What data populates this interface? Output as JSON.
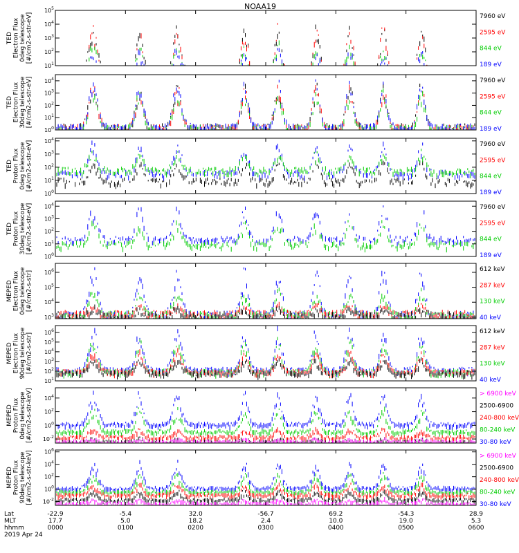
{
  "title": "NOAA19",
  "footer": {
    "rows": [
      {
        "label": "Lat",
        "values": [
          "-22.9",
          "-5.4",
          "32.0",
          "-56.7",
          "69.2",
          "-54.3",
          "28.9"
        ]
      },
      {
        "label": "MLT",
        "values": [
          "17.7",
          "5.0",
          "18.2",
          "2.4",
          "10.0",
          "19.0",
          "5.3"
        ]
      },
      {
        "label": "hhmm",
        "values": [
          "0000",
          "0100",
          "0200",
          "0300",
          "0400",
          "0500",
          "0600"
        ]
      }
    ],
    "date": "2019 Apr 24"
  },
  "chart_data": {
    "type": "scatter",
    "x_axis": {
      "label": "hhmm",
      "range": [
        "0000",
        "0600"
      ],
      "ticks": [
        "0000",
        "0100",
        "0200",
        "0300",
        "0400",
        "0500",
        "0600"
      ]
    },
    "panels": [
      {
        "ylabel": [
          "TED",
          "Electron Flux",
          "0deg telescope",
          "[#/cm2-s-str-eV]"
        ],
        "yticks": [
          {
            "v": 1,
            "label": "10^1"
          },
          {
            "v": 2,
            "label": "10^2"
          },
          {
            "v": 3,
            "label": "10^3"
          },
          {
            "v": 4,
            "label": "10^4"
          },
          {
            "v": 5,
            "label": "10^5"
          }
        ],
        "ymin": 1,
        "ymax": 5,
        "legend": [
          {
            "label": "7960 eV",
            "color": "#000000"
          },
          {
            "label": "2595 eV",
            "color": "#ff0000"
          },
          {
            "label": "844 eV",
            "color": "#00cc00"
          },
          {
            "label": "189 eV",
            "color": "#0000ff"
          }
        ],
        "series": [
          {
            "name": "7960 eV",
            "color": "#000000",
            "base": 0.35,
            "amp": 2.9
          },
          {
            "name": "2595 eV",
            "color": "#ff0000",
            "base": 0.25,
            "amp": 3.1
          },
          {
            "name": "844 eV",
            "color": "#00cc00",
            "base": 0.2,
            "amp": 2.0
          },
          {
            "name": "189 eV",
            "color": "#0000ff",
            "base": 0.1,
            "amp": 1.8
          }
        ]
      },
      {
        "ylabel": [
          "TED",
          "Electron Flux",
          "30deg telescope",
          "[#/cm2-s-str-eV]"
        ],
        "yticks": [
          {
            "v": 0,
            "label": "10^0"
          },
          {
            "v": 1,
            "label": "10^1"
          },
          {
            "v": 2,
            "label": "10^2"
          },
          {
            "v": 3,
            "label": "10^3"
          },
          {
            "v": 4,
            "label": "10^4"
          }
        ],
        "ymin": 0,
        "ymax": 4.5,
        "legend": [
          {
            "label": "7960 eV",
            "color": "#000000"
          },
          {
            "label": "2595 eV",
            "color": "#ff0000"
          },
          {
            "label": "844 eV",
            "color": "#00cc00"
          },
          {
            "label": "189 eV",
            "color": "#0000ff"
          }
        ],
        "series": [
          {
            "name": "7960 eV",
            "color": "#000000",
            "base": 0.3,
            "amp": 2.9
          },
          {
            "name": "2595 eV",
            "color": "#ff0000",
            "base": 0.25,
            "amp": 3.0
          },
          {
            "name": "844 eV",
            "color": "#00cc00",
            "base": 0.2,
            "amp": 2.6
          },
          {
            "name": "189 eV",
            "color": "#0000ff",
            "base": 0.3,
            "amp": 3.2
          }
        ]
      },
      {
        "ylabel": [
          "TED",
          "Proton Flux",
          "0deg telescope",
          "[#/cm2-s-str-eV]"
        ],
        "yticks": [
          {
            "v": 0,
            "label": "10^0"
          },
          {
            "v": 1,
            "label": "10^1"
          },
          {
            "v": 2,
            "label": "10^2"
          },
          {
            "v": 3,
            "label": "10^3"
          },
          {
            "v": 4,
            "label": "10^4"
          }
        ],
        "ymin": 0,
        "ymax": 4.2,
        "legend": [
          {
            "label": "7960 eV",
            "color": "#000000"
          },
          {
            "label": "2595 eV",
            "color": "#ff0000"
          },
          {
            "label": "844 eV",
            "color": "#00cc00"
          },
          {
            "label": "189 eV",
            "color": "#0000ff"
          }
        ],
        "series": [
          {
            "name": "7960 eV",
            "color": "#000000",
            "base": 1.0,
            "amp": 1.3
          },
          {
            "name": "189 eV",
            "color": "#0000ff",
            "base": 1.6,
            "amp": 2.0
          },
          {
            "name": "844 eV",
            "color": "#00cc00",
            "base": 1.8,
            "amp": 1.2
          }
        ]
      },
      {
        "ylabel": [
          "TED",
          "Proton Flux",
          "30deg telescope",
          "[#/cm2-s-str-eV]"
        ],
        "yticks": [
          {
            "v": 0,
            "label": "10^0"
          },
          {
            "v": 1,
            "label": "10^1"
          },
          {
            "v": 2,
            "label": "10^2"
          },
          {
            "v": 3,
            "label": "10^3"
          },
          {
            "v": 4,
            "label": "10^4"
          }
        ],
        "ymin": 0,
        "ymax": 4.4,
        "legend": [
          {
            "label": "7960 eV",
            "color": "#000000"
          },
          {
            "label": "2595 eV",
            "color": "#ff0000"
          },
          {
            "label": "844 eV",
            "color": "#00cc00"
          },
          {
            "label": "189 eV",
            "color": "#0000ff"
          }
        ],
        "series": [
          {
            "name": "189 eV",
            "color": "#0000ff",
            "base": 1.4,
            "amp": 2.3
          },
          {
            "name": "844 eV",
            "color": "#00cc00",
            "base": 1.0,
            "amp": 1.6
          }
        ]
      },
      {
        "ylabel": [
          "MEPED",
          "Electron Flux",
          "0deg telescope",
          "[#/cm2-s-str]"
        ],
        "yticks": [
          {
            "v": 3,
            "label": "10^3"
          },
          {
            "v": 4,
            "label": "10^4"
          },
          {
            "v": 5,
            "label": "10^5"
          },
          {
            "v": 6,
            "label": "10^6"
          }
        ],
        "ymin": 2.9,
        "ymax": 6.6,
        "legend": [
          {
            "label": "612 keV",
            "color": "#000000"
          },
          {
            "label": "287 keV",
            "color": "#ff0000"
          },
          {
            "label": "130 keV",
            "color": "#00cc00"
          },
          {
            "label": "40 keV",
            "color": "#0000ff"
          }
        ],
        "series": [
          {
            "name": "40 keV",
            "color": "#0000ff",
            "base": 3.2,
            "amp": 2.6
          },
          {
            "name": "130 keV",
            "color": "#00cc00",
            "base": 3.2,
            "amp": 1.3
          },
          {
            "name": "287 keV",
            "color": "#ff0000",
            "base": 3.25,
            "amp": 0.5
          },
          {
            "name": "612 keV",
            "color": "#000000",
            "base": 3.15,
            "amp": 0.4
          }
        ]
      },
      {
        "ylabel": [
          "MEPED",
          "Electron Flux",
          "90deg telescope",
          "[#/cm2-s-str]"
        ],
        "yticks": [
          {
            "v": 1,
            "label": "10^1"
          },
          {
            "v": 2,
            "label": "10^2"
          },
          {
            "v": 3,
            "label": "10^3"
          },
          {
            "v": 4,
            "label": "10^4"
          },
          {
            "v": 5,
            "label": "10^5"
          },
          {
            "v": 6,
            "label": "10^6"
          }
        ],
        "ymin": 1,
        "ymax": 6.7,
        "legend": [
          {
            "label": "612 keV",
            "color": "#000000"
          },
          {
            "label": "287 keV",
            "color": "#ff0000"
          },
          {
            "label": "130 keV",
            "color": "#00cc00"
          },
          {
            "label": "40 keV",
            "color": "#0000ff"
          }
        ],
        "series": [
          {
            "name": "40 keV",
            "color": "#0000ff",
            "base": 2.2,
            "amp": 3.6
          },
          {
            "name": "130 keV",
            "color": "#00cc00",
            "base": 2.0,
            "amp": 2.8
          },
          {
            "name": "287 keV",
            "color": "#ff0000",
            "base": 2.0,
            "amp": 1.8
          },
          {
            "name": "612 keV",
            "color": "#000000",
            "base": 1.9,
            "amp": 1.2
          }
        ]
      },
      {
        "ylabel": [
          "MEPED",
          "Proton Flux",
          "0deg telescope",
          "[#/cm2-s-str-keV]"
        ],
        "yticks": [
          {
            "v": -2,
            "label": "10^-2"
          },
          {
            "v": 0,
            "label": "10^0"
          },
          {
            "v": 2,
            "label": "10^2"
          },
          {
            "v": 4,
            "label": "10^4"
          }
        ],
        "ymin": -2.6,
        "ymax": 5.5,
        "legend": [
          {
            "label": "> 6900 keV",
            "color": "#ff00ff"
          },
          {
            "label": "2500-6900",
            "color": "#000000"
          },
          {
            "label": "240-800 keV",
            "color": "#ff0000"
          },
          {
            "label": "80-240 keV",
            "color": "#00cc00"
          },
          {
            "label": "30-80 keV",
            "color": "#0000ff"
          }
        ],
        "series": [
          {
            "name": "30-80 keV",
            "color": "#0000ff",
            "base": 0.3,
            "amp": 3.8
          },
          {
            "name": "80-240 keV",
            "color": "#00cc00",
            "base": -0.8,
            "amp": 2.8
          },
          {
            "name": "240-800 keV",
            "color": "#ff0000",
            "base": -1.6,
            "amp": 1.0
          },
          {
            "name": "2500-6900",
            "color": "#000000",
            "base": -2.3,
            "amp": 0.4
          },
          {
            "name": "> 6900 keV",
            "color": "#ff00ff",
            "base": -2.3,
            "amp": 0.3
          }
        ]
      },
      {
        "ylabel": [
          "MEPED",
          "Proton Flux",
          "90deg telescope",
          "[#/cm2-s-str-keV]"
        ],
        "yticks": [
          {
            "v": -2,
            "label": "10^-2"
          },
          {
            "v": 0,
            "label": "10^0"
          },
          {
            "v": 2,
            "label": "10^2"
          },
          {
            "v": 4,
            "label": "10^4"
          },
          {
            "v": 6,
            "label": "10^6"
          }
        ],
        "ymin": -2.6,
        "ymax": 6.3,
        "legend": [
          {
            "label": "> 6900 keV",
            "color": "#ff00ff"
          },
          {
            "label": "2500-6900",
            "color": "#000000"
          },
          {
            "label": "240-800 keV",
            "color": "#ff0000"
          },
          {
            "label": "80-240 keV",
            "color": "#00cc00"
          },
          {
            "label": "30-80 keV",
            "color": "#0000ff"
          }
        ],
        "series": [
          {
            "name": "30-80 keV",
            "color": "#0000ff",
            "base": 0.3,
            "amp": 3.6
          },
          {
            "name": "80-240 keV",
            "color": "#00cc00",
            "base": -0.3,
            "amp": 2.4
          },
          {
            "name": "240-800 keV",
            "color": "#ff0000",
            "base": -0.8,
            "amp": 1.5
          },
          {
            "name": "2500-6900",
            "color": "#000000",
            "base": -1.6,
            "amp": 1.2
          },
          {
            "name": "> 6900 keV",
            "color": "#ff00ff",
            "base": -2.2,
            "amp": 0.6
          }
        ]
      }
    ],
    "passes": [
      {
        "t": 0.09,
        "w": 0.015
      },
      {
        "t": 0.2,
        "w": 0.012
      },
      {
        "t": 0.29,
        "w": 0.014
      },
      {
        "t": 0.45,
        "w": 0.012
      },
      {
        "t": 0.53,
        "w": 0.012
      },
      {
        "t": 0.62,
        "w": 0.012
      },
      {
        "t": 0.7,
        "w": 0.012
      },
      {
        "t": 0.78,
        "w": 0.012
      },
      {
        "t": 0.87,
        "w": 0.012
      }
    ]
  }
}
